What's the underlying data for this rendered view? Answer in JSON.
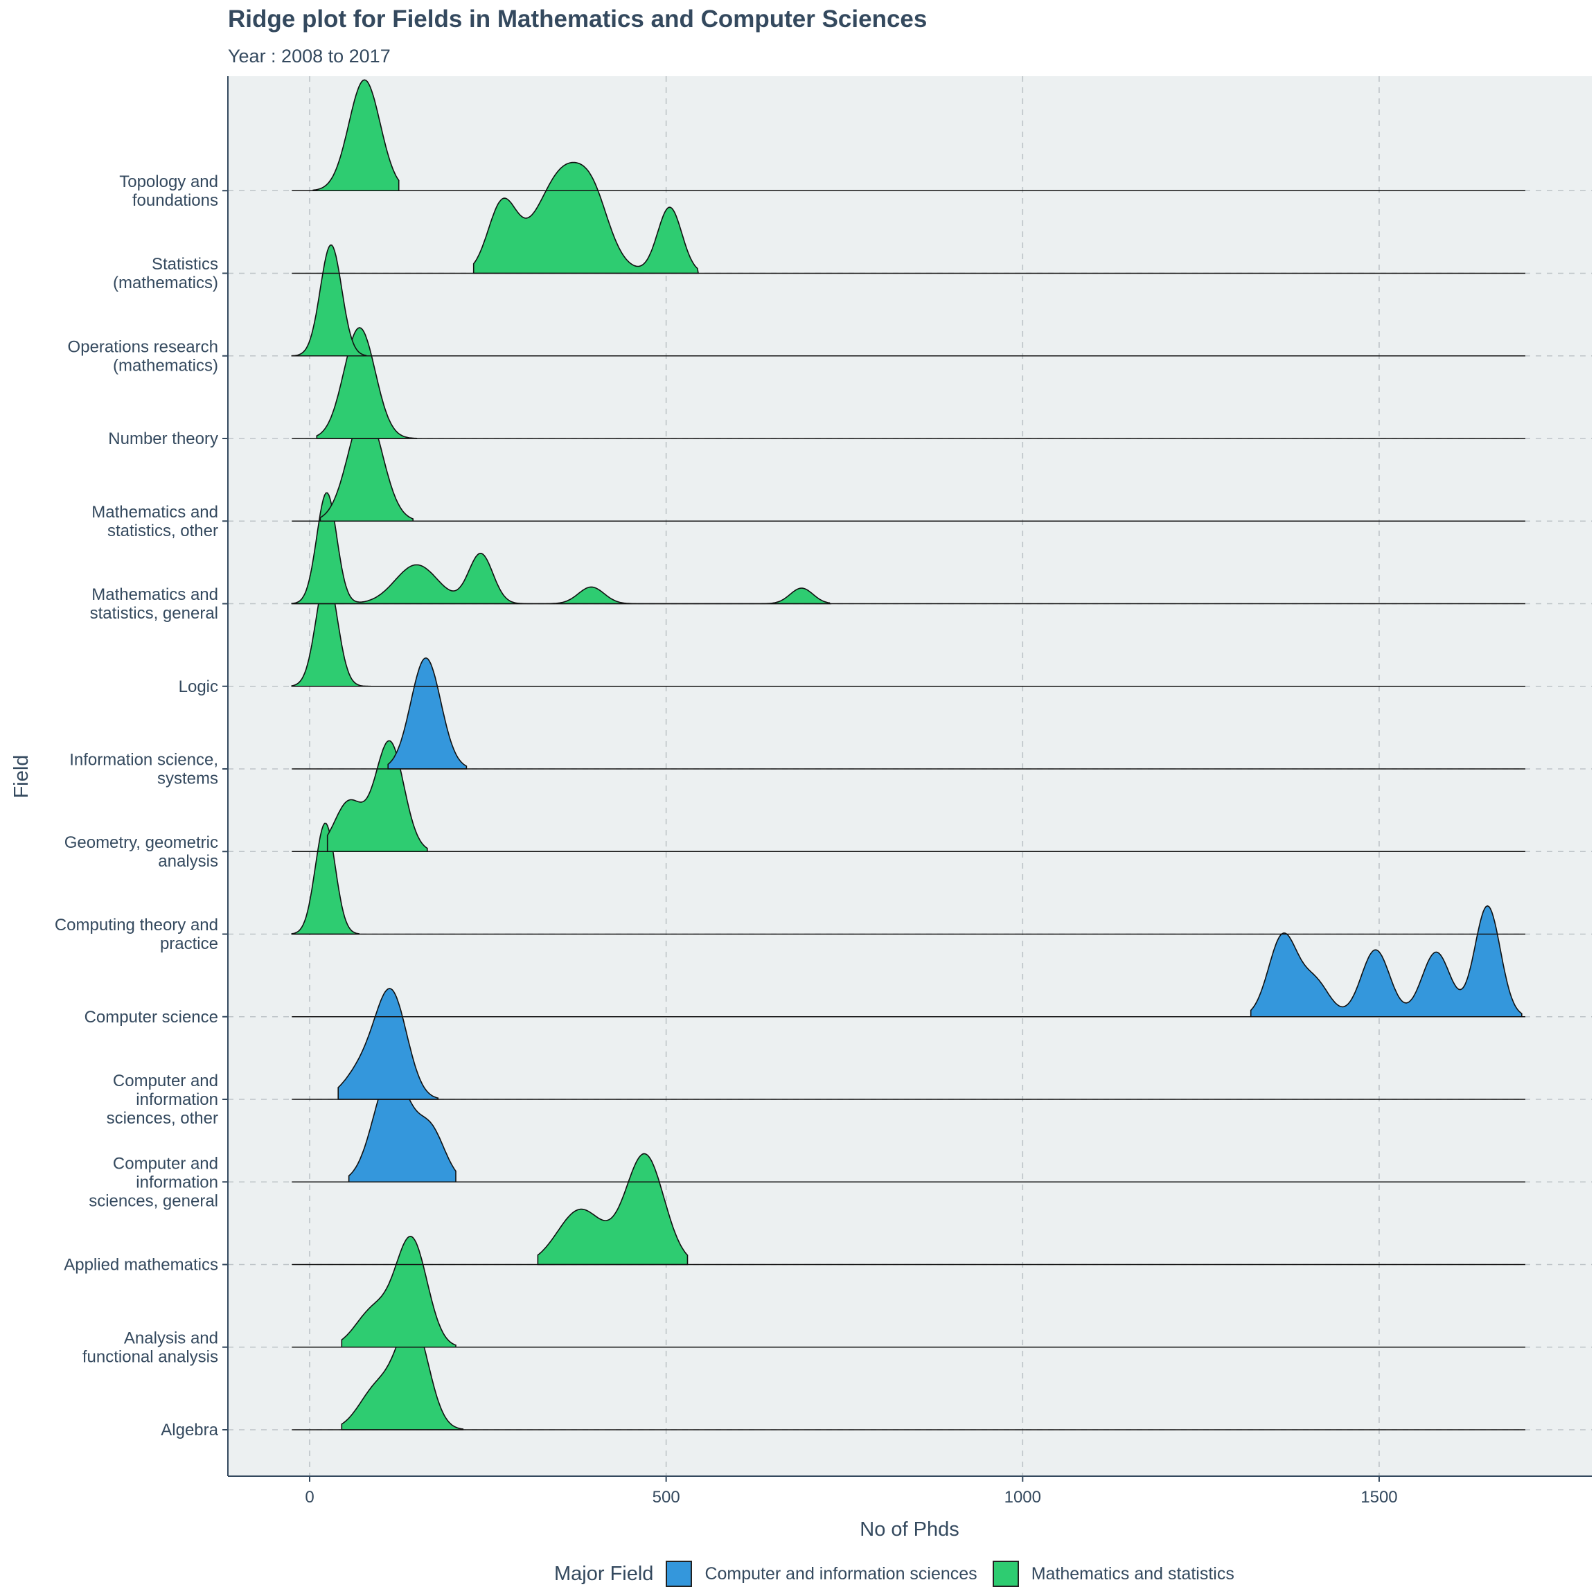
{
  "chart_data": {
    "type": "area",
    "subtype": "ridgeline",
    "title": "Ridge plot for Fields in Mathematics and Computer Sciences",
    "subtitle": "Year : 2008 to 2017",
    "xlabel": "No of Phds",
    "ylabel": "Field",
    "xlim": [
      -115,
      1800
    ],
    "x_ticks": [
      0,
      500,
      1000,
      1500
    ],
    "grid": true,
    "legend_position": "bottom",
    "legend": {
      "title": "Major Field",
      "items": [
        {
          "name": "Computer and information sciences",
          "color": "#3497dc"
        },
        {
          "name": "Mathematics and statistics",
          "color": "#2ecc71"
        }
      ]
    },
    "fields": [
      {
        "name": "Algebra",
        "label_lines": [
          "Algebra"
        ],
        "group": "Mathematics and statistics",
        "peaks": [
          [
            145,
            22,
            1.0
          ],
          [
            95,
            25,
            0.4
          ]
        ],
        "range": [
          45,
          215
        ]
      },
      {
        "name": "Analysis and functional analysis",
        "label_lines": [
          "Analysis and",
          "functional analysis"
        ],
        "group": "Mathematics and statistics",
        "peaks": [
          [
            143,
            22,
            1.0
          ],
          [
            90,
            25,
            0.35
          ]
        ],
        "range": [
          45,
          205
        ]
      },
      {
        "name": "Applied mathematics",
        "label_lines": [
          "Applied mathematics"
        ],
        "group": "Mathematics and statistics",
        "peaks": [
          [
            470,
            27,
            1.0
          ],
          [
            380,
            32,
            0.5
          ]
        ],
        "range": [
          320,
          530
        ]
      },
      {
        "name": "Computer and information sciences, general",
        "label_lines": [
          "Computer and",
          "information",
          "sciences, general"
        ],
        "group": "Computer and information sciences",
        "peaks": [
          [
            115,
            25,
            1.0
          ],
          [
            170,
            20,
            0.45
          ]
        ],
        "range": [
          55,
          205
        ]
      },
      {
        "name": "Computer and information sciences, other",
        "label_lines": [
          "Computer and",
          "information",
          "sciences, other"
        ],
        "group": "Computer and information sciences",
        "peaks": [
          [
            115,
            22,
            1.0
          ],
          [
            75,
            25,
            0.3
          ]
        ],
        "range": [
          40,
          180
        ]
      },
      {
        "name": "Computer science",
        "label_lines": [
          "Computer science"
        ],
        "group": "Computer and information sciences",
        "peaks": [
          [
            1365,
            20,
            0.35
          ],
          [
            1410,
            20,
            0.15
          ],
          [
            1495,
            20,
            0.29
          ],
          [
            1580,
            20,
            0.28
          ],
          [
            1652,
            18,
            0.48
          ]
        ],
        "range": [
          1320,
          1700
        ]
      },
      {
        "name": "Computing theory and practice",
        "label_lines": [
          "Computing theory and",
          "practice"
        ],
        "group": "Mathematics and statistics",
        "peaks": [
          [
            22,
            14,
            1.0
          ]
        ],
        "range": [
          -25,
          70
        ]
      },
      {
        "name": "Geometry, geometric analysis",
        "label_lines": [
          "Geometry, geometric",
          "analysis"
        ],
        "group": "Mathematics and statistics",
        "peaks": [
          [
            112,
            20,
            1.0
          ],
          [
            55,
            20,
            0.45
          ]
        ],
        "range": [
          25,
          165
        ]
      },
      {
        "name": "Information science, systems",
        "label_lines": [
          "Information science,",
          "systems"
        ],
        "group": "Computer and information sciences",
        "peaks": [
          [
            163,
            21,
            1.0
          ]
        ],
        "range": [
          110,
          220
        ]
      },
      {
        "name": "Logic",
        "label_lines": [
          "Logic"
        ],
        "group": "Mathematics and statistics",
        "peaks": [
          [
            24,
            15,
            1.0
          ]
        ],
        "range": [
          -25,
          85
        ]
      },
      {
        "name": "Mathematics and statistics, general",
        "label_lines": [
          "Mathematics and",
          "statistics, general"
        ],
        "group": "Mathematics and statistics",
        "peaks": [
          [
            24,
            14,
            1.0
          ],
          [
            150,
            30,
            0.35
          ],
          [
            240,
            17,
            0.45
          ],
          [
            395,
            18,
            0.15
          ],
          [
            690,
            16,
            0.14
          ]
        ],
        "range": [
          -25,
          730
        ]
      },
      {
        "name": "Mathematics and statistics, other",
        "label_lines": [
          "Mathematics and",
          "statistics, other"
        ],
        "group": "Mathematics and statistics",
        "peaks": [
          [
            78,
            24,
            1.0
          ]
        ],
        "range": [
          15,
          145
        ]
      },
      {
        "name": "Number theory",
        "label_lines": [
          "Number theory"
        ],
        "group": "Mathematics and statistics",
        "peaks": [
          [
            70,
            22,
            1.0
          ]
        ],
        "range": [
          10,
          150
        ]
      },
      {
        "name": "Operations research (mathematics)",
        "label_lines": [
          "Operations research",
          "(mathematics)"
        ],
        "group": "Mathematics and statistics",
        "peaks": [
          [
            30,
            15,
            1.0
          ]
        ],
        "range": [
          -25,
          80
        ]
      },
      {
        "name": "Statistics (mathematics)",
        "label_lines": [
          "Statistics",
          "(mathematics)"
        ],
        "group": "Mathematics and statistics",
        "peaks": [
          [
            270,
            20,
            0.25
          ],
          [
            360,
            40,
            0.4
          ],
          [
            400,
            20,
            0.1
          ],
          [
            505,
            17,
            0.25
          ]
        ],
        "range": [
          230,
          545
        ]
      },
      {
        "name": "Topology and foundations",
        "label_lines": [
          "Topology and",
          "foundations"
        ],
        "group": "Mathematics and statistics",
        "peaks": [
          [
            77,
            22,
            1.0
          ]
        ],
        "range": [
          5,
          125
        ]
      }
    ]
  }
}
